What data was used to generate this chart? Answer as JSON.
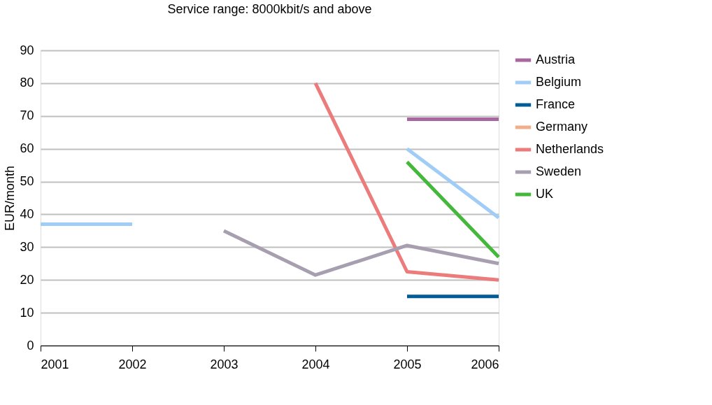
{
  "chart_data": {
    "type": "line",
    "title": "Service range: 8000kbit/s and above",
    "ylabel": "EUR/month",
    "categories": [
      "2001",
      "2002",
      "2003",
      "2004",
      "2005",
      "2006"
    ],
    "ylim": [
      0,
      90
    ],
    "yticks": [
      0,
      10,
      20,
      30,
      40,
      50,
      60,
      70,
      80,
      90
    ],
    "grid": "y",
    "legend": "right",
    "marker": "none",
    "line_style": "solid",
    "series": [
      {
        "name": "Austria",
        "color": "#a8679e",
        "values": [
          null,
          null,
          null,
          null,
          69,
          69
        ]
      },
      {
        "name": "Belgium",
        "color": "#9fcdf7",
        "values": [
          37,
          37,
          null,
          null,
          60,
          39
        ]
      },
      {
        "name": "France",
        "color": "#005b96",
        "values": [
          null,
          null,
          null,
          null,
          15,
          15
        ]
      },
      {
        "name": "Germany",
        "color": "#f0ae8a",
        "values": [
          null,
          null,
          null,
          null,
          null,
          null
        ]
      },
      {
        "name": "Netherlands",
        "color": "#ec7b7b",
        "values": [
          null,
          null,
          null,
          80,
          22.5,
          20
        ]
      },
      {
        "name": "Sweden",
        "color": "#a79fb0",
        "values": [
          null,
          null,
          35,
          21.5,
          30.5,
          25
        ]
      },
      {
        "name": "UK",
        "color": "#44b83a",
        "values": [
          null,
          null,
          null,
          null,
          56,
          27
        ]
      }
    ]
  }
}
